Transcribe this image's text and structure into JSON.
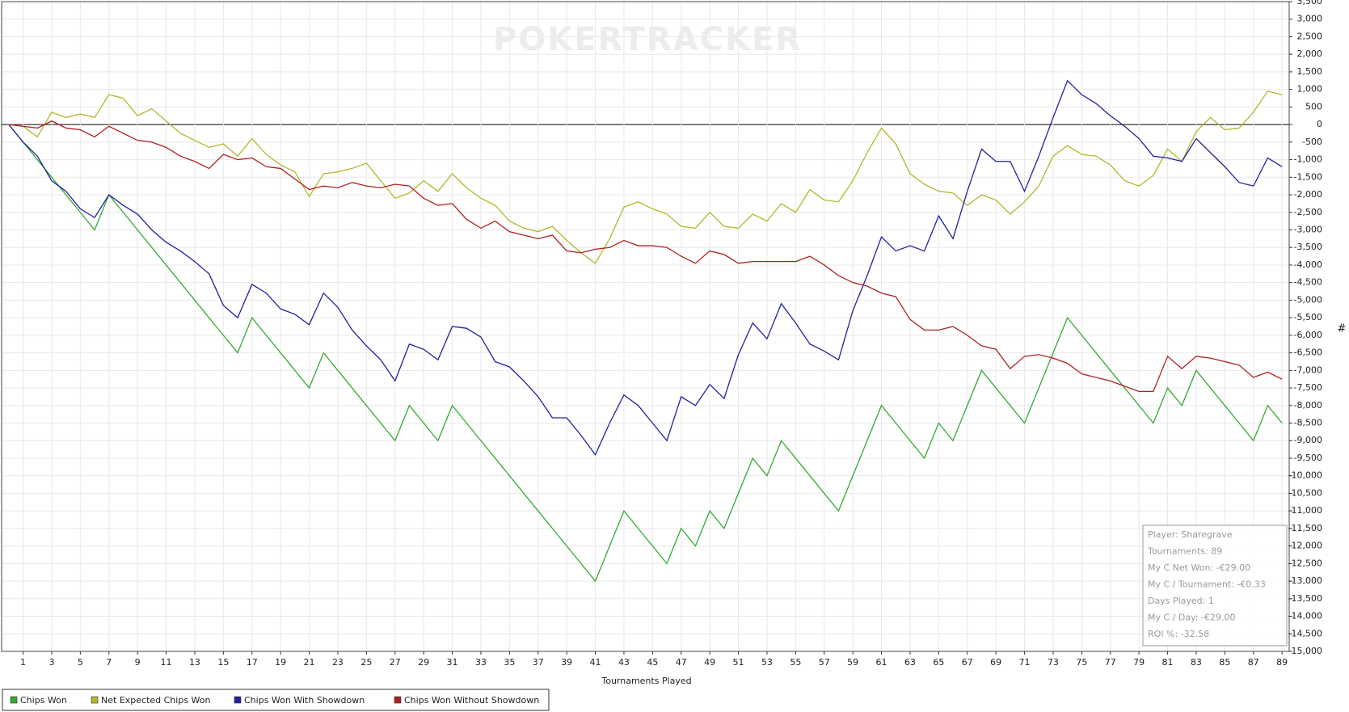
{
  "chart_data": {
    "type": "line",
    "watermark": "POKERTRACKER",
    "xlabel": "Tournaments Played",
    "ylabel": "#",
    "x": [
      0,
      1,
      2,
      3,
      4,
      5,
      6,
      7,
      8,
      9,
      10,
      11,
      12,
      13,
      14,
      15,
      16,
      17,
      18,
      19,
      20,
      21,
      22,
      23,
      24,
      25,
      26,
      27,
      28,
      29,
      30,
      31,
      32,
      33,
      34,
      35,
      36,
      37,
      38,
      39,
      40,
      41,
      42,
      43,
      44,
      45,
      46,
      47,
      48,
      49,
      50,
      51,
      52,
      53,
      54,
      55,
      56,
      57,
      58,
      59,
      60,
      61,
      62,
      63,
      64,
      65,
      66,
      67,
      68,
      69,
      70,
      71,
      72,
      73,
      74,
      75,
      76,
      77,
      78,
      79,
      80,
      81,
      82,
      83,
      84,
      85,
      86,
      87,
      88,
      89
    ],
    "xlim": [
      -0.5,
      89.5
    ],
    "xticks": [
      1,
      3,
      5,
      7,
      9,
      11,
      13,
      15,
      17,
      19,
      21,
      23,
      25,
      27,
      29,
      31,
      33,
      35,
      37,
      39,
      41,
      43,
      45,
      47,
      49,
      51,
      53,
      55,
      57,
      59,
      61,
      63,
      65,
      67,
      69,
      71,
      73,
      75,
      77,
      79,
      81,
      83,
      85,
      87,
      89
    ],
    "ylim": [
      -15000,
      3500
    ],
    "yticks": [
      {
        "value": -15000,
        "label": "-15,000"
      },
      {
        "value": -14500,
        "label": "-14,500"
      },
      {
        "value": -14000,
        "label": "-14,000"
      },
      {
        "value": -13500,
        "label": "-13,500"
      },
      {
        "value": -13000,
        "label": "-13,000"
      },
      {
        "value": -12500,
        "label": "-12,500"
      },
      {
        "value": -12000,
        "label": "-12,000"
      },
      {
        "value": -11500,
        "label": "-11,500"
      },
      {
        "value": -11000,
        "label": "-11,000"
      },
      {
        "value": -10500,
        "label": "-10,500"
      },
      {
        "value": -10000,
        "label": "-10,000"
      },
      {
        "value": -9500,
        "label": "-9,500"
      },
      {
        "value": -9000,
        "label": "-9,000"
      },
      {
        "value": -8500,
        "label": "-8,500"
      },
      {
        "value": -8000,
        "label": "-8,000"
      },
      {
        "value": -7500,
        "label": "-7,500"
      },
      {
        "value": -7000,
        "label": "-7,000"
      },
      {
        "value": -6500,
        "label": "-6,500"
      },
      {
        "value": -6000,
        "label": "-6,000"
      },
      {
        "value": -5500,
        "label": "-5,500"
      },
      {
        "value": -5000,
        "label": "-5,000"
      },
      {
        "value": -4500,
        "label": "-4,500"
      },
      {
        "value": -4000,
        "label": "-4,000"
      },
      {
        "value": -3500,
        "label": "-3,500"
      },
      {
        "value": -3000,
        "label": "-3,000"
      },
      {
        "value": -2500,
        "label": "-2,500"
      },
      {
        "value": -2000,
        "label": "-2,000"
      },
      {
        "value": -1500,
        "label": "-1,500"
      },
      {
        "value": -1000,
        "label": "-1,000"
      },
      -500,
      0,
      500,
      {
        "value": 1000,
        "label": "1,000"
      },
      {
        "value": 1500,
        "label": "1,500"
      },
      {
        "value": 2000,
        "label": "2,000"
      },
      {
        "value": 2500,
        "label": "2,500"
      },
      {
        "value": 3000,
        "label": "3,000"
      },
      {
        "value": 3500,
        "label": "3,500"
      }
    ],
    "grid": true,
    "series": [
      {
        "name": "Chips Won",
        "color": "#33aa33",
        "values": [
          0,
          -500,
          -1000,
          -1500,
          -2000,
          -2500,
          -3000,
          -2000,
          -2500,
          -3000,
          -3500,
          -4000,
          -4500,
          -5000,
          -5500,
          -6000,
          -6500,
          -5500,
          -6000,
          -6500,
          -7000,
          -7500,
          -6500,
          -7000,
          -7500,
          -8000,
          -8500,
          -9000,
          -8000,
          -8500,
          -9000,
          -8000,
          -8500,
          -9000,
          -9500,
          -10000,
          -10500,
          -11000,
          -11500,
          -12000,
          -12500,
          -13000,
          -12000,
          -11000,
          -11500,
          -12000,
          -12500,
          -11500,
          -12000,
          -11000,
          -11500,
          -10500,
          -9500,
          -10000,
          -9000,
          -9500,
          -10000,
          -10500,
          -11000,
          -10000,
          -9000,
          -8000,
          -8500,
          -9000,
          -9500,
          -8500,
          -9000,
          -8000,
          -7000,
          -7500,
          -8000,
          -8500,
          -7500,
          -6500,
          -5500,
          -6000,
          -6500,
          -7000,
          -7500,
          -8000,
          -8500,
          -7500,
          -8000,
          -7000,
          -7500,
          -8000,
          -8500,
          -9000,
          -8000,
          -8500
        ]
      },
      {
        "name": "Net Expected Chips Won",
        "color": "#b5b52a",
        "values": [
          0,
          -50,
          -350,
          350,
          200,
          300,
          200,
          850,
          750,
          250,
          450,
          100,
          -250,
          -450,
          -650,
          -550,
          -900,
          -400,
          -850,
          -1150,
          -1350,
          -2050,
          -1400,
          -1350,
          -1250,
          -1100,
          -1600,
          -2100,
          -1950,
          -1600,
          -1900,
          -1400,
          -1800,
          -2100,
          -2300,
          -2750,
          -2950,
          -3050,
          -2900,
          -3300,
          -3650,
          -3950,
          -3250,
          -2350,
          -2200,
          -2400,
          -2550,
          -2900,
          -2950,
          -2500,
          -2900,
          -2950,
          -2550,
          -2750,
          -2250,
          -2500,
          -1850,
          -2150,
          -2200,
          -1600,
          -800,
          -100,
          -550,
          -1400,
          -1700,
          -1900,
          -1950,
          -2300,
          -2000,
          -2150,
          -2550,
          -2200,
          -1750,
          -900,
          -600,
          -850,
          -900,
          -1150,
          -1600,
          -1750,
          -1450,
          -700,
          -1050,
          -200,
          200,
          -150,
          -100,
          350,
          950,
          850
        ]
      },
      {
        "name": "Chips Won With Showdown",
        "color": "#2020a0",
        "values": [
          0,
          -500,
          -900,
          -1600,
          -1900,
          -2400,
          -2650,
          -2000,
          -2300,
          -2550,
          -3000,
          -3350,
          -3600,
          -3900,
          -4250,
          -5150,
          -5500,
          -4550,
          -4800,
          -5250,
          -5400,
          -5700,
          -4800,
          -5200,
          -5850,
          -6300,
          -6700,
          -7300,
          -6250,
          -6400,
          -6700,
          -5750,
          -5800,
          -6050,
          -6750,
          -6900,
          -7300,
          -7750,
          -8350,
          -8350,
          -8850,
          -9400,
          -8500,
          -7700,
          -8000,
          -8500,
          -9000,
          -7750,
          -8000,
          -7400,
          -7800,
          -6550,
          -5650,
          -6100,
          -5100,
          -5650,
          -6250,
          -6450,
          -6700,
          -5300,
          -4300,
          -3200,
          -3600,
          -3450,
          -3600,
          -2600,
          -3250,
          -1900,
          -700,
          -1050,
          -1050,
          -1900,
          -900,
          200,
          1250,
          850,
          600,
          250,
          -50,
          -400,
          -900,
          -950,
          -1050,
          -400,
          -800,
          -1200,
          -1650,
          -1750,
          -950,
          -1200
        ]
      },
      {
        "name": "Chips Won Without Showdown",
        "color": "#b02020",
        "values": [
          0,
          -50,
          -100,
          100,
          -100,
          -150,
          -350,
          -50,
          -250,
          -450,
          -500,
          -650,
          -900,
          -1050,
          -1250,
          -850,
          -1000,
          -950,
          -1200,
          -1250,
          -1550,
          -1850,
          -1750,
          -1800,
          -1650,
          -1750,
          -1800,
          -1700,
          -1750,
          -2100,
          -2300,
          -2250,
          -2700,
          -2950,
          -2750,
          -3050,
          -3150,
          -3250,
          -3150,
          -3600,
          -3650,
          -3550,
          -3500,
          -3300,
          -3450,
          -3450,
          -3500,
          -3750,
          -3950,
          -3600,
          -3700,
          -3950,
          -3900,
          -3900,
          -3900,
          -3900,
          -3750,
          -4000,
          -4300,
          -4500,
          -4600,
          -4800,
          -4900,
          -5550,
          -5850,
          -5850,
          -5750,
          -6000,
          -6300,
          -6400,
          -6950,
          -6600,
          -6550,
          -6650,
          -6800,
          -7100,
          -7200,
          -7300,
          -7450,
          -7600,
          -7600,
          -6600,
          -6950,
          -6600,
          -6650,
          -6750,
          -6850,
          -7200,
          -7050,
          -7250
        ]
      }
    ],
    "info": [
      "Player: Sharegrave",
      "Tournaments: 89",
      "My C Net Won: -€29.00",
      "My C / Tournament: -€0.33",
      "Days Played: 1",
      "My C / Day: -€29.00",
      "ROI %: -32.58"
    ]
  }
}
